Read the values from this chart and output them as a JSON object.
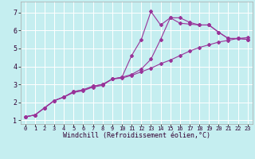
{
  "xlabel": "Windchill (Refroidissement éolien,°C)",
  "background_color": "#c5eef0",
  "grid_color": "#aadddd",
  "line_color": "#993399",
  "xlim": [
    -0.5,
    23.5
  ],
  "ylim": [
    0.8,
    7.6
  ],
  "xticks": [
    0,
    1,
    2,
    3,
    4,
    5,
    6,
    7,
    8,
    9,
    10,
    11,
    12,
    13,
    14,
    15,
    16,
    17,
    18,
    19,
    20,
    21,
    22,
    23
  ],
  "yticks": [
    1,
    2,
    3,
    4,
    5,
    6,
    7
  ],
  "curve1_x": [
    0,
    1,
    2,
    3,
    4,
    5,
    6,
    7,
    8,
    9,
    10,
    11,
    12,
    13,
    14,
    15,
    16,
    17,
    18,
    19,
    20,
    21,
    22,
    23
  ],
  "curve1_y": [
    1.2,
    1.3,
    1.7,
    2.1,
    2.3,
    2.55,
    2.65,
    2.85,
    2.95,
    3.3,
    3.35,
    3.5,
    3.7,
    3.9,
    4.15,
    4.35,
    4.6,
    4.85,
    5.05,
    5.2,
    5.35,
    5.45,
    5.55,
    5.6
  ],
  "curve2_x": [
    0,
    1,
    2,
    3,
    4,
    5,
    6,
    7,
    8,
    9,
    10,
    11,
    12,
    13,
    14,
    15,
    16,
    17,
    18,
    19,
    20,
    21,
    22,
    23
  ],
  "curve2_y": [
    1.2,
    1.3,
    1.7,
    2.1,
    2.3,
    2.6,
    2.7,
    2.9,
    3.0,
    3.3,
    3.4,
    3.55,
    3.85,
    4.4,
    5.5,
    6.7,
    6.4,
    6.35,
    6.3,
    6.3,
    5.9,
    5.55,
    5.55,
    5.5
  ],
  "curve3_x": [
    0,
    1,
    2,
    3,
    4,
    5,
    6,
    7,
    8,
    9,
    10,
    11,
    12,
    13,
    14,
    15,
    16,
    17,
    18,
    19,
    20,
    21,
    22,
    23
  ],
  "curve3_y": [
    1.2,
    1.3,
    1.7,
    2.1,
    2.3,
    2.6,
    2.7,
    2.9,
    3.0,
    3.3,
    3.4,
    4.6,
    5.5,
    7.05,
    6.3,
    6.7,
    6.7,
    6.45,
    6.3,
    6.3,
    5.9,
    5.55,
    5.55,
    5.5
  ],
  "xlabel_fontsize": 6,
  "tick_fontsize_x": 5,
  "tick_fontsize_y": 6
}
